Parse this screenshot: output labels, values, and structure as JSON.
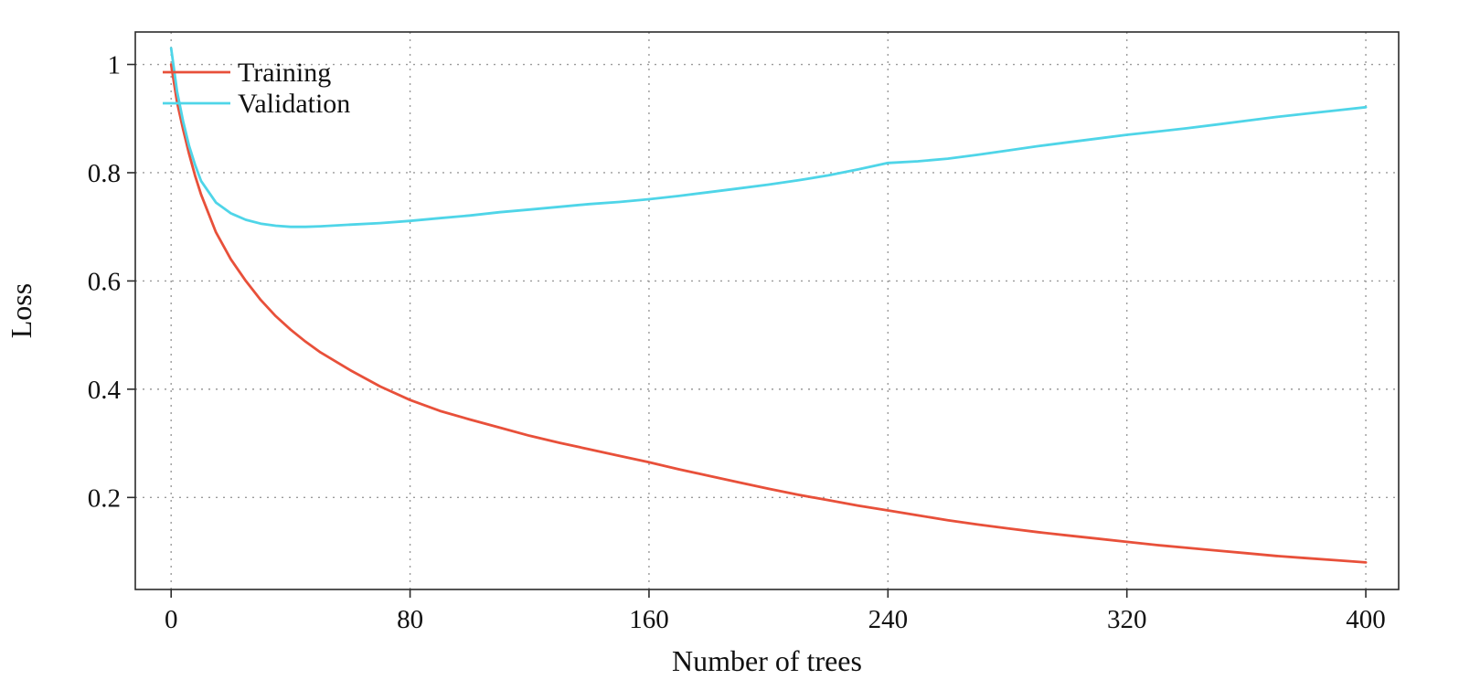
{
  "chart_data": {
    "type": "line",
    "title": "",
    "xlabel": "Number of trees",
    "ylabel": "Loss",
    "xlim": [
      -12,
      411
    ],
    "ylim": [
      0.03,
      1.06
    ],
    "xticks": [
      0,
      80,
      160,
      240,
      320,
      400
    ],
    "xtick_labels": [
      "0",
      "80",
      "160",
      "240",
      "320",
      "400"
    ],
    "yticks": [
      0.2,
      0.4,
      0.6,
      0.8,
      1
    ],
    "ytick_labels": [
      "0.2",
      "0.4",
      "0.6",
      "0.8",
      "1"
    ],
    "grid": "dotted",
    "legend_position": "top-left",
    "colors": {
      "axis": "#2b2b2b",
      "grid": "#9a9a9a",
      "text": "#111111"
    },
    "x": [
      0,
      2,
      4,
      6,
      8,
      10,
      15,
      20,
      25,
      30,
      35,
      40,
      45,
      50,
      60,
      70,
      80,
      90,
      100,
      110,
      120,
      130,
      140,
      150,
      160,
      170,
      180,
      190,
      200,
      210,
      220,
      230,
      240,
      250,
      260,
      270,
      280,
      290,
      300,
      310,
      320,
      330,
      340,
      350,
      360,
      370,
      380,
      390,
      400
    ],
    "series": [
      {
        "name": "Training",
        "color": "#e8503a",
        "values": [
          1.0,
          0.93,
          0.88,
          0.835,
          0.795,
          0.76,
          0.69,
          0.64,
          0.6,
          0.565,
          0.535,
          0.51,
          0.488,
          0.468,
          0.435,
          0.405,
          0.38,
          0.36,
          0.344,
          0.329,
          0.314,
          0.301,
          0.289,
          0.277,
          0.265,
          0.252,
          0.24,
          0.228,
          0.216,
          0.205,
          0.195,
          0.185,
          0.176,
          0.167,
          0.158,
          0.15,
          0.143,
          0.136,
          0.13,
          0.124,
          0.118,
          0.112,
          0.107,
          0.102,
          0.097,
          0.092,
          0.088,
          0.084,
          0.08
        ]
      },
      {
        "name": "Validation",
        "color": "#4fd5e8",
        "values": [
          1.03,
          0.95,
          0.895,
          0.85,
          0.815,
          0.785,
          0.745,
          0.725,
          0.713,
          0.706,
          0.702,
          0.7,
          0.7,
          0.701,
          0.704,
          0.707,
          0.711,
          0.716,
          0.721,
          0.727,
          0.732,
          0.737,
          0.742,
          0.746,
          0.751,
          0.757,
          0.764,
          0.771,
          0.778,
          0.786,
          0.795,
          0.806,
          0.818,
          0.821,
          0.826,
          0.833,
          0.841,
          0.849,
          0.856,
          0.863,
          0.87,
          0.876,
          0.882,
          0.889,
          0.896,
          0.903,
          0.909,
          0.915,
          0.921
        ]
      }
    ]
  }
}
